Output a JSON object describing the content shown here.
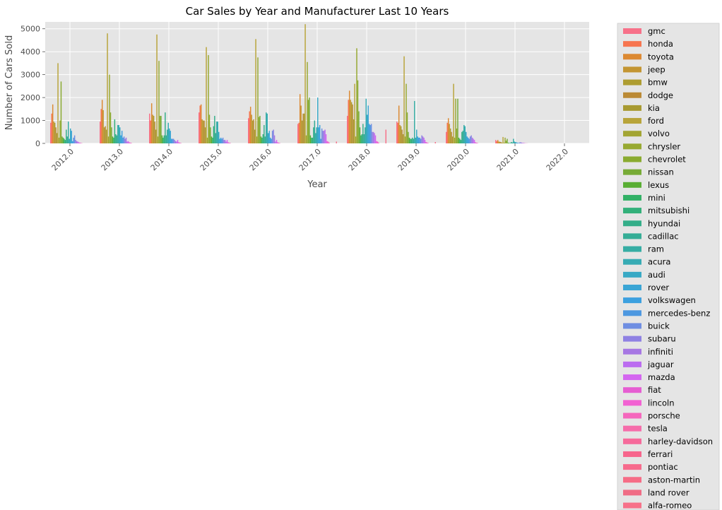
{
  "chart_data": {
    "type": "bar",
    "title": "Car Sales by Year and Manufacturer Last 10 Years",
    "xlabel": "Year",
    "ylabel": "Number of Cars Sold",
    "categories": [
      "2012.0",
      "2013.0",
      "2014.0",
      "2015.0",
      "2016.0",
      "2017.0",
      "2018.0",
      "2019.0",
      "2020.0",
      "2021.0",
      "2022.0"
    ],
    "ylim": [
      0,
      5300
    ],
    "yticks": [
      0,
      1000,
      2000,
      3000,
      4000,
      5000
    ],
    "grid": true,
    "legend_position": "outside-right",
    "series": [
      {
        "name": "gmc",
        "color": "#f77189",
        "values": [
          900,
          950,
          1300,
          1350,
          1100,
          850,
          1200,
          950,
          500,
          150,
          0
        ]
      },
      {
        "name": "honda",
        "color": "#f7754f",
        "values": [
          1300,
          1500,
          1000,
          1650,
          1400,
          900,
          1900,
          900,
          900,
          100,
          0
        ]
      },
      {
        "name": "toyota",
        "color": "#dc8932",
        "values": [
          1700,
          1900,
          1750,
          1700,
          1600,
          2150,
          2300,
          1650,
          1100,
          150,
          0
        ]
      },
      {
        "name": "jeep",
        "color": "#c39532",
        "values": [
          950,
          1450,
          1250,
          1050,
          1250,
          1650,
          1900,
          800,
          850,
          80,
          0
        ]
      },
      {
        "name": "bmw",
        "color": "#ae9d31",
        "values": [
          900,
          700,
          1200,
          1000,
          1000,
          1000,
          1800,
          750,
          650,
          70,
          0
        ]
      },
      {
        "name": "dodge",
        "color": "#bb8a35",
        "values": [
          700,
          750,
          950,
          1000,
          1050,
          1300,
          1700,
          600,
          500,
          60,
          0
        ]
      },
      {
        "name": "kia",
        "color": "#a89a31",
        "values": [
          450,
          600,
          600,
          700,
          600,
          1300,
          1050,
          400,
          300,
          30,
          0
        ]
      },
      {
        "name": "ford",
        "color": "#b8a43a",
        "values": [
          3500,
          4800,
          4750,
          4200,
          4550,
          5200,
          2600,
          3800,
          2600,
          280,
          0
        ]
      },
      {
        "name": "volvo",
        "color": "#a3a533",
        "values": [
          250,
          300,
          300,
          250,
          300,
          350,
          300,
          300,
          250,
          30,
          0
        ]
      },
      {
        "name": "chrysler",
        "color": "#97a931",
        "values": [
          1000,
          3000,
          3600,
          3850,
          3750,
          3550,
          4150,
          2600,
          1950,
          250,
          0
        ]
      },
      {
        "name": "chevrolet",
        "color": "#8aab30",
        "values": [
          2700,
          1350,
          1200,
          1250,
          1150,
          1900,
          2750,
          1350,
          650,
          120,
          0
        ]
      },
      {
        "name": "nissan",
        "color": "#77ab36",
        "values": [
          300,
          700,
          1200,
          700,
          1200,
          2000,
          1400,
          500,
          1950,
          200,
          0
        ]
      },
      {
        "name": "lexus",
        "color": "#59ae33",
        "values": [
          250,
          300,
          350,
          300,
          300,
          350,
          700,
          250,
          250,
          30,
          0
        ]
      },
      {
        "name": "mini",
        "color": "#32b166",
        "values": [
          200,
          250,
          250,
          250,
          250,
          250,
          350,
          200,
          200,
          20,
          0
        ]
      },
      {
        "name": "mitsubishi",
        "color": "#33b07a",
        "values": [
          150,
          1050,
          350,
          750,
          400,
          250,
          400,
          200,
          150,
          20,
          0
        ]
      },
      {
        "name": "hyundai",
        "color": "#34ae89",
        "values": [
          600,
          400,
          1350,
          1200,
          800,
          700,
          850,
          250,
          500,
          60,
          0
        ]
      },
      {
        "name": "cadillac",
        "color": "#35ad96",
        "values": [
          300,
          350,
          350,
          450,
          300,
          1000,
          400,
          200,
          550,
          40,
          0
        ]
      },
      {
        "name": "ram",
        "color": "#36ada4",
        "values": [
          950,
          800,
          600,
          950,
          1350,
          450,
          700,
          1850,
          800,
          200,
          0
        ]
      },
      {
        "name": "acura",
        "color": "#37abb4",
        "values": [
          200,
          800,
          900,
          950,
          1300,
          700,
          1950,
          250,
          750,
          80,
          0
        ]
      },
      {
        "name": "audi",
        "color": "#38a9c5",
        "values": [
          650,
          700,
          650,
          500,
          450,
          2000,
          1250,
          600,
          500,
          60,
          0
        ]
      },
      {
        "name": "rover",
        "color": "#3aa5d5",
        "values": [
          550,
          350,
          550,
          200,
          550,
          700,
          1650,
          300,
          300,
          40,
          0
        ]
      },
      {
        "name": "volkswagen",
        "color": "#3ca0df",
        "values": [
          100,
          550,
          200,
          250,
          250,
          800,
          850,
          250,
          250,
          30,
          0
        ]
      },
      {
        "name": "mercedes-benz",
        "color": "#4d98e0",
        "values": [
          250,
          250,
          200,
          200,
          200,
          200,
          800,
          250,
          200,
          20,
          0
        ]
      },
      {
        "name": "buick",
        "color": "#6f8ee2",
        "values": [
          350,
          300,
          200,
          250,
          550,
          650,
          850,
          200,
          300,
          40,
          0
        ]
      },
      {
        "name": "subaru",
        "color": "#8f81e3",
        "values": [
          150,
          200,
          150,
          150,
          600,
          550,
          500,
          350,
          350,
          50,
          0
        ]
      },
      {
        "name": "infiniti",
        "color": "#a677e3",
        "values": [
          100,
          250,
          100,
          150,
          350,
          550,
          500,
          300,
          250,
          30,
          0
        ]
      },
      {
        "name": "jaguar",
        "color": "#bb6cf0",
        "values": [
          80,
          80,
          80,
          80,
          80,
          600,
          450,
          250,
          200,
          20,
          0
        ]
      },
      {
        "name": "mazda",
        "color": "#d466f0",
        "values": [
          50,
          100,
          150,
          150,
          150,
          400,
          350,
          150,
          150,
          20,
          0
        ]
      },
      {
        "name": "fiat",
        "color": "#e65ed2",
        "values": [
          30,
          50,
          50,
          50,
          50,
          100,
          100,
          60,
          50,
          10,
          0
        ]
      },
      {
        "name": "lincoln",
        "color": "#f262d2",
        "values": [
          20,
          30,
          30,
          30,
          30,
          80,
          80,
          40,
          30,
          5,
          0
        ]
      },
      {
        "name": "porsche",
        "color": "#f567bd",
        "values": [
          10,
          20,
          20,
          20,
          20,
          40,
          40,
          20,
          20,
          5,
          0
        ]
      },
      {
        "name": "tesla",
        "color": "#f66daa",
        "values": [
          0,
          0,
          0,
          0,
          0,
          0,
          0,
          0,
          0,
          0,
          0
        ]
      },
      {
        "name": "harley-davidson",
        "color": "#f66a9b",
        "values": [
          0,
          0,
          0,
          0,
          0,
          0,
          0,
          0,
          0,
          0,
          0
        ]
      },
      {
        "name": "ferrari",
        "color": "#f7658c",
        "values": [
          0,
          0,
          0,
          0,
          0,
          0,
          0,
          0,
          0,
          0,
          0
        ]
      },
      {
        "name": "pontiac",
        "color": "#f76a8c",
        "values": [
          0,
          0,
          0,
          0,
          0,
          0,
          0,
          0,
          0,
          0,
          0
        ]
      },
      {
        "name": "aston-martin",
        "color": "#f66d86",
        "values": [
          0,
          0,
          0,
          0,
          0,
          0,
          0,
          0,
          0,
          0,
          0
        ]
      },
      {
        "name": "land rover",
        "color": "#f06c85",
        "values": [
          0,
          0,
          0,
          0,
          0,
          0,
          0,
          0,
          0,
          0,
          0
        ]
      },
      {
        "name": "alfa-romeo",
        "color": "#f77189",
        "values": [
          0,
          0,
          0,
          0,
          0,
          80,
          600,
          60,
          0,
          0,
          0
        ]
      }
    ]
  }
}
